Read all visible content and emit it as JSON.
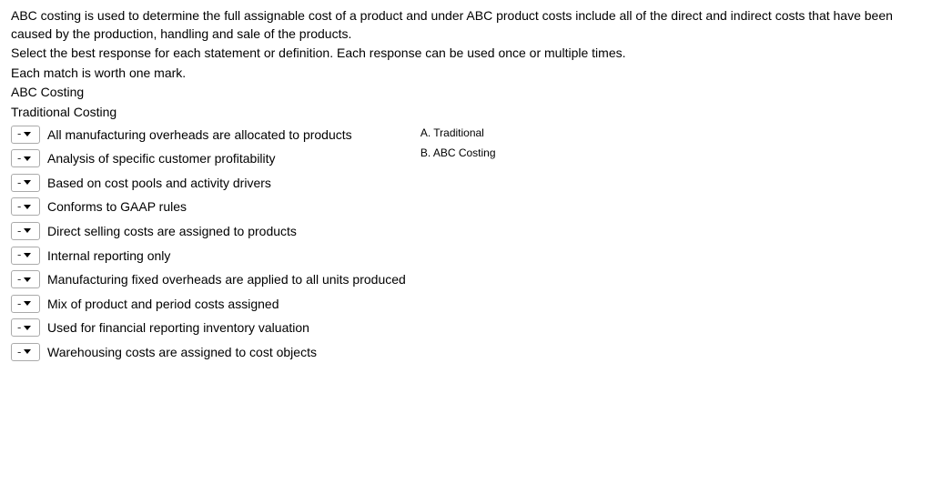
{
  "intro": {
    "line1": "ABC costing is used to determine the full assignable cost of a product and under ABC product costs include all of the direct and indirect costs that have been caused by the production, handling and sale of the products.",
    "line2": "Select the best response for each statement or definition. Each response can be used once or multiple times.",
    "line3": "Each match is worth one mark.",
    "heading1": "ABC Costing",
    "heading2": "Traditional Costing"
  },
  "dropdown_placeholder": "-",
  "statements": [
    "All manufacturing overheads are allocated to products",
    "Analysis of specific customer profitability",
    "Based on cost pools and activity drivers",
    "Conforms to GAAP rules",
    "Direct selling costs are assigned to products",
    "Internal reporting only",
    "Manufacturing fixed overheads are applied to all units produced",
    "Mix of product and period costs assigned",
    "Used for financial reporting inventory valuation",
    "Warehousing costs are assigned to cost objects"
  ],
  "options": [
    "A. Traditional",
    "B. ABC Costing"
  ]
}
